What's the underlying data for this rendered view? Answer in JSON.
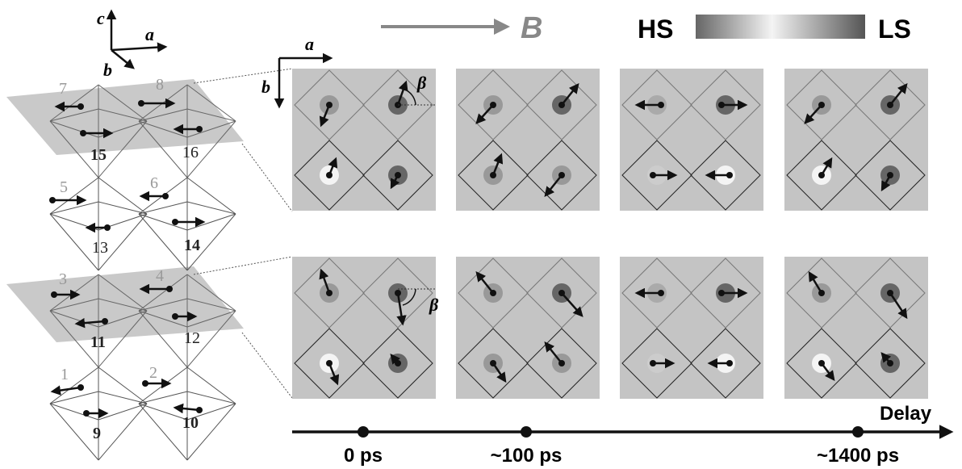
{
  "left_axes": {
    "c": "c",
    "a": "a",
    "b": "b"
  },
  "field_label": "B",
  "legend": {
    "hs": "HS",
    "ls": "LS"
  },
  "panel_axes": {
    "a": "a",
    "b": "b"
  },
  "angle_labels": [
    "β",
    "β"
  ],
  "sites": [
    "1",
    "2",
    "3",
    "4",
    "5",
    "6",
    "7",
    "8",
    "9",
    "10",
    "11",
    "12",
    "13",
    "14",
    "15",
    "16"
  ],
  "timeline": {
    "label": "Delay",
    "ticks": [
      "0 ps",
      "~100 ps",
      "~1400 ps"
    ]
  }
}
